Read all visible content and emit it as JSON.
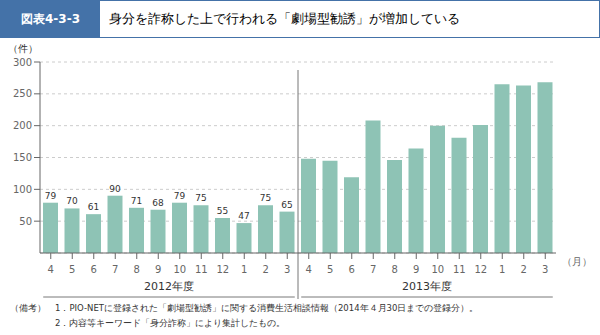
{
  "chart_data": {
    "type": "bar",
    "title": "身分を詐称した上で行われる「劇場型勧誘」が増加している",
    "subtitle": "図表4-3-3",
    "x_label": "（月）",
    "y_label": "（件）",
    "categories": [
      "4",
      "5",
      "6",
      "7",
      "8",
      "9",
      "10",
      "11",
      "12",
      "1",
      "2",
      "3",
      "4",
      "5",
      "6",
      "7",
      "8",
      "9",
      "10",
      "11",
      "12",
      "1",
      "2",
      "3"
    ],
    "series": [
      {
        "name": "2012年度",
        "color": "#8ec3b5",
        "values": [
          79,
          70,
          61,
          90,
          71,
          68,
          79,
          75,
          55,
          47,
          75,
          65,
          null,
          null,
          null,
          null,
          null,
          null,
          null,
          null,
          null,
          null,
          null,
          null
        ]
      },
      {
        "name": "2013年度",
        "color": "#8ec3b5",
        "values": [
          null,
          null,
          null,
          null,
          null,
          null,
          null,
          null,
          null,
          null,
          null,
          null,
          148,
          145,
          119,
          208,
          146,
          164,
          200,
          181,
          201,
          265,
          263,
          268
        ]
      }
    ],
    "ylim": [
      0,
      300
    ],
    "yticks": [
      50,
      100,
      150,
      200,
      250,
      300
    ],
    "grid": true,
    "data_labels": true,
    "annotations": [
      "（備考）　1．PIO-NETに登録された「劇場型勧誘」に関する消費生活相談情報（2014年４月30日までの登録分）。",
      "　　　　　2．内容等キーワード「身分詐称」により集計したもの。"
    ]
  }
}
